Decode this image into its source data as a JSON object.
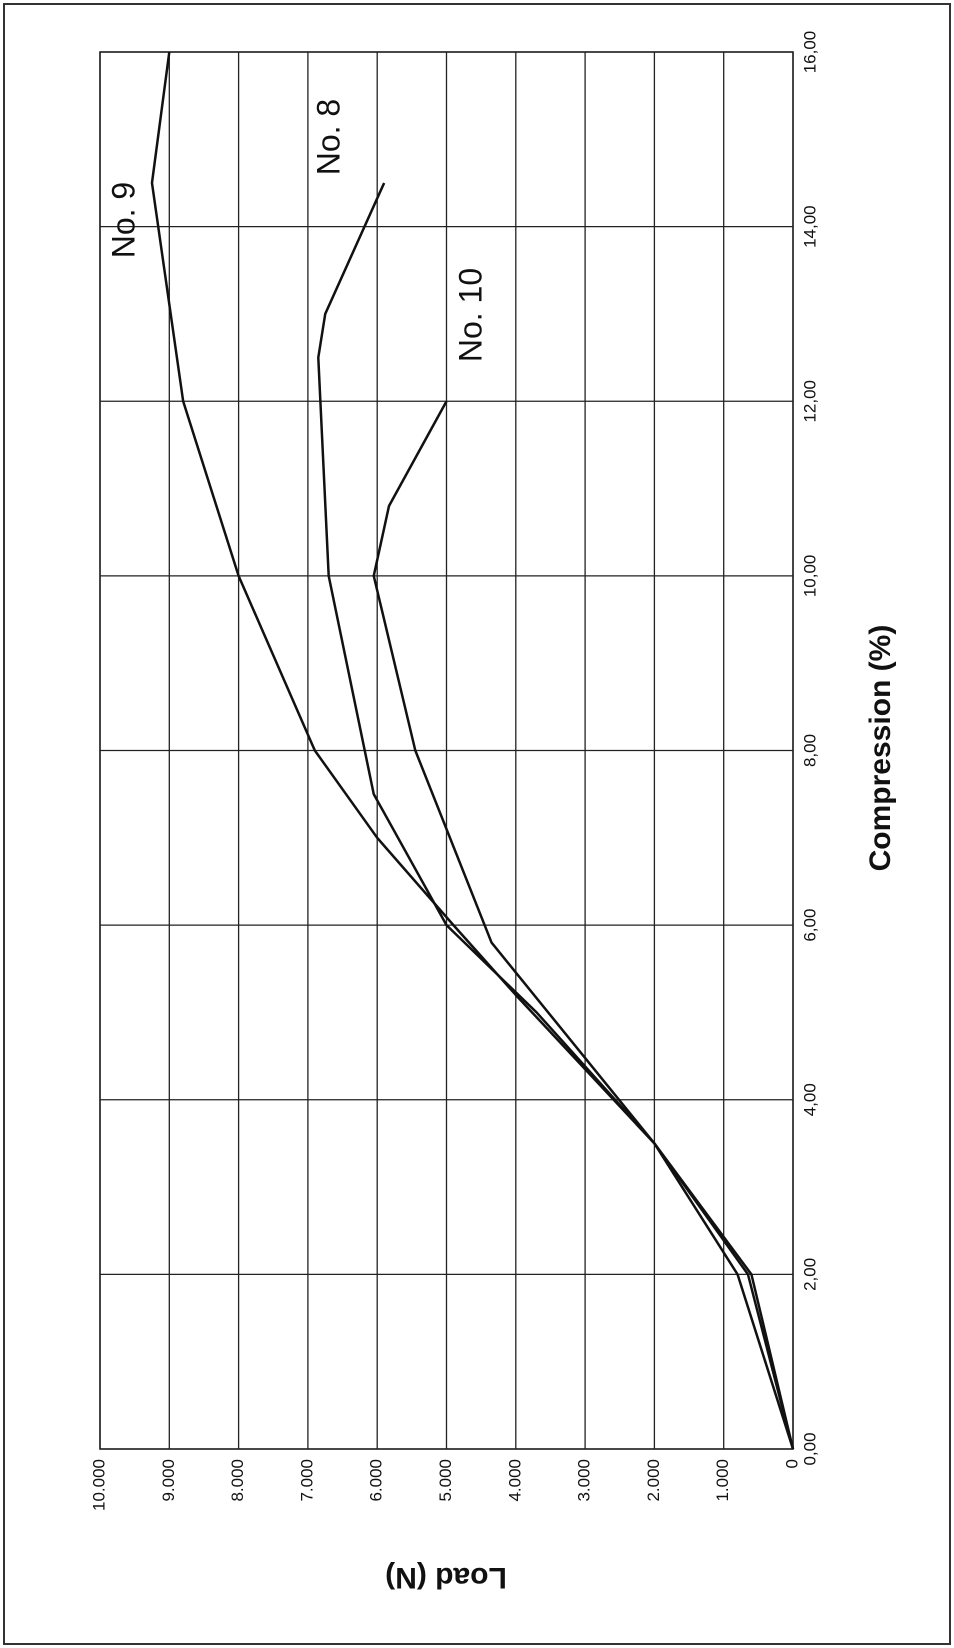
{
  "chart_data": {
    "type": "line",
    "x_label": "Compression (%)",
    "y_label": "Load (N)",
    "xlim": [
      0,
      16
    ],
    "xticks": [
      {
        "value": 0,
        "label": "0,00"
      },
      {
        "value": 2,
        "label": "2,00"
      },
      {
        "value": 4,
        "label": "4,00"
      },
      {
        "value": 6,
        "label": "6,00"
      },
      {
        "value": 8,
        "label": "8,00"
      },
      {
        "value": 10,
        "label": "10,00"
      },
      {
        "value": 12,
        "label": "12,00"
      },
      {
        "value": 14,
        "label": "14,00"
      },
      {
        "value": 16,
        "label": "16,00"
      }
    ],
    "ylim": [
      0,
      10000
    ],
    "yticks": [
      0,
      {
        "value": 1000,
        "label": "1.000"
      },
      {
        "value": 2000,
        "label": "2.000"
      },
      {
        "value": 3000,
        "label": "3.000"
      },
      {
        "value": 4000,
        "label": "4.000"
      },
      {
        "value": 5000,
        "label": "5.000"
      },
      {
        "value": 6000,
        "label": "6.000"
      },
      {
        "value": 7000,
        "label": "7.000"
      },
      {
        "value": 8000,
        "label": "8.000"
      },
      {
        "value": 9000,
        "label": "9.000"
      },
      {
        "value": 10000,
        "label": "10.000"
      }
    ],
    "grid": true,
    "series": [
      {
        "name": "No. 9",
        "color": "#111111",
        "x": [
          0,
          2,
          3.5,
          5.2,
          6,
          7,
          8,
          10,
          12,
          14.5,
          16
        ],
        "values": [
          0,
          800,
          2000,
          4000,
          4900,
          6000,
          6900,
          8000,
          8800,
          9250,
          9000
        ]
      },
      {
        "name": "No. 8",
        "color": "#111111",
        "x": [
          0,
          2,
          3.5,
          5,
          6,
          7.5,
          10,
          12.5,
          13,
          14.5
        ],
        "values": [
          0,
          600,
          2000,
          3700,
          5000,
          6050,
          6700,
          6850,
          6750,
          5900
        ]
      },
      {
        "name": "No. 10",
        "color": "#111111",
        "x": [
          0,
          2,
          3.5,
          5.8,
          8,
          10,
          10.8,
          12
        ],
        "values": [
          0,
          650,
          2000,
          4350,
          5450,
          6050,
          5830,
          5000
        ]
      }
    ]
  }
}
